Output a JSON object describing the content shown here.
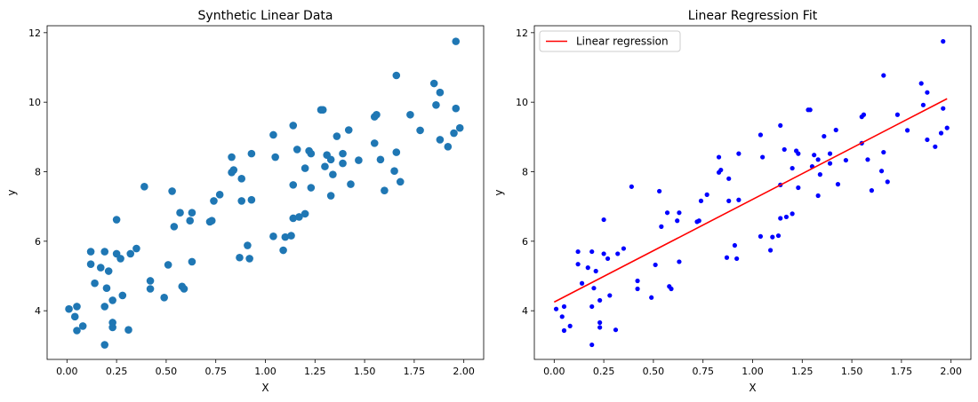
{
  "chart_data": [
    {
      "type": "scatter",
      "title": "Synthetic Linear Data",
      "xlabel": "X",
      "ylabel": "y",
      "xlim": [
        -0.1,
        2.1
      ],
      "ylim": [
        2.6,
        12.2
      ],
      "xticks": [
        0.0,
        0.25,
        0.5,
        0.75,
        1.0,
        1.25,
        1.5,
        1.75,
        2.0
      ],
      "xtick_labels": [
        "0.00",
        "0.25",
        "0.50",
        "0.75",
        "1.00",
        "1.25",
        "1.50",
        "1.75",
        "2.00"
      ],
      "yticks": [
        4,
        6,
        8,
        10,
        12
      ],
      "ytick_labels": [
        "4",
        "6",
        "8",
        "10",
        "12"
      ],
      "grid": false,
      "color": "#1f77b4",
      "points": [
        [
          0.01,
          4.05
        ],
        [
          0.04,
          3.83
        ],
        [
          0.05,
          3.43
        ],
        [
          0.05,
          4.12
        ],
        [
          0.08,
          3.56
        ],
        [
          0.12,
          5.7
        ],
        [
          0.12,
          5.34
        ],
        [
          0.14,
          4.79
        ],
        [
          0.17,
          5.24
        ],
        [
          0.19,
          3.02
        ],
        [
          0.19,
          5.7
        ],
        [
          0.19,
          4.12
        ],
        [
          0.2,
          4.65
        ],
        [
          0.21,
          5.14
        ],
        [
          0.23,
          3.52
        ],
        [
          0.23,
          3.66
        ],
        [
          0.23,
          4.3
        ],
        [
          0.25,
          6.62
        ],
        [
          0.25,
          5.64
        ],
        [
          0.27,
          5.5
        ],
        [
          0.28,
          4.44
        ],
        [
          0.31,
          3.45
        ],
        [
          0.32,
          5.64
        ],
        [
          0.35,
          5.79
        ],
        [
          0.39,
          7.57
        ],
        [
          0.42,
          4.86
        ],
        [
          0.42,
          4.63
        ],
        [
          0.49,
          4.38
        ],
        [
          0.51,
          5.32
        ],
        [
          0.53,
          7.44
        ],
        [
          0.54,
          6.42
        ],
        [
          0.57,
          6.82
        ],
        [
          0.58,
          4.7
        ],
        [
          0.59,
          4.63
        ],
        [
          0.62,
          6.59
        ],
        [
          0.63,
          6.82
        ],
        [
          0.63,
          5.41
        ],
        [
          0.72,
          6.56
        ],
        [
          0.73,
          6.59
        ],
        [
          0.74,
          7.16
        ],
        [
          0.77,
          7.34
        ],
        [
          0.83,
          7.98
        ],
        [
          0.83,
          8.42
        ],
        [
          0.84,
          8.05
        ],
        [
          0.87,
          5.53
        ],
        [
          0.88,
          7.16
        ],
        [
          0.88,
          7.8
        ],
        [
          0.91,
          5.88
        ],
        [
          0.92,
          5.5
        ],
        [
          0.93,
          8.52
        ],
        [
          0.93,
          7.19
        ],
        [
          1.04,
          6.14
        ],
        [
          1.04,
          9.06
        ],
        [
          1.05,
          8.42
        ],
        [
          1.09,
          5.74
        ],
        [
          1.1,
          6.12
        ],
        [
          1.13,
          6.16
        ],
        [
          1.14,
          7.62
        ],
        [
          1.14,
          9.33
        ],
        [
          1.14,
          6.66
        ],
        [
          1.16,
          8.64
        ],
        [
          1.17,
          6.7
        ],
        [
          1.2,
          8.1
        ],
        [
          1.2,
          6.79
        ],
        [
          1.22,
          8.6
        ],
        [
          1.23,
          8.52
        ],
        [
          1.23,
          7.54
        ],
        [
          1.28,
          9.78
        ],
        [
          1.29,
          9.78
        ],
        [
          1.3,
          8.15
        ],
        [
          1.31,
          8.48
        ],
        [
          1.33,
          8.35
        ],
        [
          1.33,
          7.31
        ],
        [
          1.34,
          7.92
        ],
        [
          1.36,
          9.02
        ],
        [
          1.39,
          8.52
        ],
        [
          1.39,
          8.24
        ],
        [
          1.42,
          9.2
        ],
        [
          1.43,
          7.64
        ],
        [
          1.47,
          8.33
        ],
        [
          1.55,
          9.58
        ],
        [
          1.55,
          8.82
        ],
        [
          1.56,
          9.64
        ],
        [
          1.58,
          8.35
        ],
        [
          1.6,
          7.46
        ],
        [
          1.65,
          8.02
        ],
        [
          1.66,
          10.77
        ],
        [
          1.66,
          8.56
        ],
        [
          1.68,
          7.71
        ],
        [
          1.73,
          9.64
        ],
        [
          1.78,
          9.19
        ],
        [
          1.85,
          10.54
        ],
        [
          1.86,
          9.92
        ],
        [
          1.88,
          10.28
        ],
        [
          1.88,
          8.92
        ],
        [
          1.92,
          8.72
        ],
        [
          1.95,
          9.11
        ],
        [
          1.96,
          9.82
        ],
        [
          1.96,
          11.75
        ],
        [
          1.98,
          9.26
        ]
      ]
    },
    {
      "type": "scatter",
      "title": "Linear Regression Fit",
      "xlabel": "X",
      "ylabel": "y",
      "xlim": [
        -0.1,
        2.1
      ],
      "ylim": [
        2.6,
        12.2
      ],
      "xticks": [
        0.0,
        0.25,
        0.5,
        0.75,
        1.0,
        1.25,
        1.5,
        1.75,
        2.0
      ],
      "xtick_labels": [
        "0.00",
        "0.25",
        "0.50",
        "0.75",
        "1.00",
        "1.25",
        "1.50",
        "1.75",
        "2.00"
      ],
      "yticks": [
        4,
        6,
        8,
        10,
        12
      ],
      "ytick_labels": [
        "4",
        "6",
        "8",
        "10",
        "12"
      ],
      "grid": false,
      "color": "#0000ff",
      "legend": {
        "position": "top-left",
        "entries": [
          "Linear regression"
        ]
      },
      "series": [
        {
          "name": "Linear regression",
          "type": "line",
          "color": "#ff0000",
          "x": [
            0.0,
            1.98
          ],
          "y": [
            4.25,
            10.1
          ]
        }
      ],
      "points": [
        [
          0.01,
          4.05
        ],
        [
          0.04,
          3.83
        ],
        [
          0.05,
          3.43
        ],
        [
          0.05,
          4.12
        ],
        [
          0.08,
          3.56
        ],
        [
          0.12,
          5.7
        ],
        [
          0.12,
          5.34
        ],
        [
          0.14,
          4.79
        ],
        [
          0.17,
          5.24
        ],
        [
          0.19,
          3.02
        ],
        [
          0.19,
          5.7
        ],
        [
          0.19,
          4.12
        ],
        [
          0.2,
          4.65
        ],
        [
          0.21,
          5.14
        ],
        [
          0.23,
          3.52
        ],
        [
          0.23,
          3.66
        ],
        [
          0.23,
          4.3
        ],
        [
          0.25,
          6.62
        ],
        [
          0.25,
          5.64
        ],
        [
          0.27,
          5.5
        ],
        [
          0.28,
          4.44
        ],
        [
          0.31,
          3.45
        ],
        [
          0.32,
          5.64
        ],
        [
          0.35,
          5.79
        ],
        [
          0.39,
          7.57
        ],
        [
          0.42,
          4.86
        ],
        [
          0.42,
          4.63
        ],
        [
          0.49,
          4.38
        ],
        [
          0.51,
          5.32
        ],
        [
          0.53,
          7.44
        ],
        [
          0.54,
          6.42
        ],
        [
          0.57,
          6.82
        ],
        [
          0.58,
          4.7
        ],
        [
          0.59,
          4.63
        ],
        [
          0.62,
          6.59
        ],
        [
          0.63,
          6.82
        ],
        [
          0.63,
          5.41
        ],
        [
          0.72,
          6.56
        ],
        [
          0.73,
          6.59
        ],
        [
          0.74,
          7.16
        ],
        [
          0.77,
          7.34
        ],
        [
          0.83,
          7.98
        ],
        [
          0.83,
          8.42
        ],
        [
          0.84,
          8.05
        ],
        [
          0.87,
          5.53
        ],
        [
          0.88,
          7.16
        ],
        [
          0.88,
          7.8
        ],
        [
          0.91,
          5.88
        ],
        [
          0.92,
          5.5
        ],
        [
          0.93,
          8.52
        ],
        [
          0.93,
          7.19
        ],
        [
          1.04,
          6.14
        ],
        [
          1.04,
          9.06
        ],
        [
          1.05,
          8.42
        ],
        [
          1.09,
          5.74
        ],
        [
          1.1,
          6.12
        ],
        [
          1.13,
          6.16
        ],
        [
          1.14,
          7.62
        ],
        [
          1.14,
          9.33
        ],
        [
          1.14,
          6.66
        ],
        [
          1.16,
          8.64
        ],
        [
          1.17,
          6.7
        ],
        [
          1.2,
          8.1
        ],
        [
          1.2,
          6.79
        ],
        [
          1.22,
          8.6
        ],
        [
          1.23,
          8.52
        ],
        [
          1.23,
          7.54
        ],
        [
          1.28,
          9.78
        ],
        [
          1.29,
          9.78
        ],
        [
          1.3,
          8.15
        ],
        [
          1.31,
          8.48
        ],
        [
          1.33,
          8.35
        ],
        [
          1.33,
          7.31
        ],
        [
          1.34,
          7.92
        ],
        [
          1.36,
          9.02
        ],
        [
          1.39,
          8.52
        ],
        [
          1.39,
          8.24
        ],
        [
          1.42,
          9.2
        ],
        [
          1.43,
          7.64
        ],
        [
          1.47,
          8.33
        ],
        [
          1.55,
          9.58
        ],
        [
          1.55,
          8.82
        ],
        [
          1.56,
          9.64
        ],
        [
          1.58,
          8.35
        ],
        [
          1.6,
          7.46
        ],
        [
          1.65,
          8.02
        ],
        [
          1.66,
          10.77
        ],
        [
          1.66,
          8.56
        ],
        [
          1.68,
          7.71
        ],
        [
          1.73,
          9.64
        ],
        [
          1.78,
          9.19
        ],
        [
          1.85,
          10.54
        ],
        [
          1.86,
          9.92
        ],
        [
          1.88,
          10.28
        ],
        [
          1.88,
          8.92
        ],
        [
          1.92,
          8.72
        ],
        [
          1.95,
          9.11
        ],
        [
          1.96,
          9.82
        ],
        [
          1.96,
          11.75
        ],
        [
          1.98,
          9.26
        ]
      ]
    }
  ]
}
